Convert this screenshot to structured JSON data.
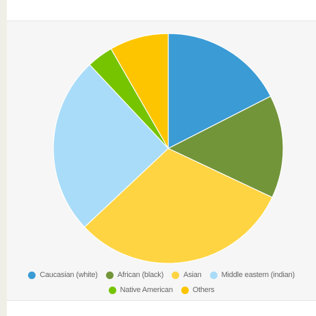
{
  "chart_data": {
    "type": "pie",
    "title": "",
    "slices": [
      {
        "label": "Caucasian (white)",
        "value": 17.5,
        "color": "#3a9bd5"
      },
      {
        "label": "African (black)",
        "value": 14.5,
        "color": "#72953a"
      },
      {
        "label": "Asian",
        "value": 31.0,
        "color": "#fed442"
      },
      {
        "label": "Middle eastern (indian)",
        "value": 25.0,
        "color": "#a9dcf8"
      },
      {
        "label": "Native American",
        "value": 3.7,
        "color": "#76c400"
      },
      {
        "label": "Others",
        "value": 8.3,
        "color": "#fdc500"
      }
    ],
    "legend": {
      "placement": "bottom",
      "rows": [
        [
          "Caucasian (white)",
          "African (black)",
          "Asian",
          "Middle eastern (indian)"
        ],
        [
          "Native American",
          "Others"
        ]
      ]
    }
  }
}
